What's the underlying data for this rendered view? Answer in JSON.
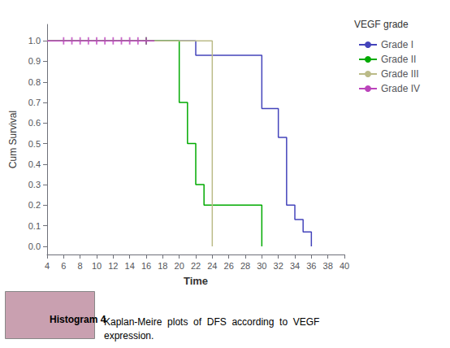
{
  "chart_data": {
    "type": "line",
    "xlabel": "Time",
    "ylabel": "Cum Survival",
    "legend_title": "VEGF grade",
    "xlim": [
      4,
      40
    ],
    "ylim": [
      -0.04,
      1.08
    ],
    "xticks": [
      4,
      6,
      8,
      10,
      12,
      14,
      16,
      18,
      20,
      22,
      24,
      26,
      28,
      30,
      32,
      34,
      36,
      38,
      40
    ],
    "yticks": [
      {
        "value": 0.0,
        "label": "0.0"
      },
      0.1,
      0.2,
      0.3,
      0.4,
      0.5,
      0.6,
      0.7,
      0.8,
      0.9,
      {
        "value": 1.0,
        "label": "1.0"
      }
    ],
    "grid": false,
    "legend": "right",
    "line_style": "steps-post",
    "series": [
      {
        "name": "Grade I",
        "color": "#4444bb",
        "x": [
          4,
          22,
          22,
          24,
          24,
          30,
          30,
          32,
          32,
          33,
          33,
          34,
          34,
          35,
          35,
          36,
          36
        ],
        "values": [
          1.0,
          1.0,
          0.93,
          0.93,
          0.93,
          0.93,
          0.67,
          0.67,
          0.53,
          0.53,
          0.2,
          0.2,
          0.13,
          0.13,
          0.07,
          0.07,
          0.0
        ]
      },
      {
        "name": "Grade II",
        "color": "#00aa00",
        "x": [
          4,
          20,
          20,
          21,
          21,
          22,
          22,
          23,
          23,
          30,
          30
        ],
        "values": [
          1.0,
          1.0,
          0.7,
          0.7,
          0.5,
          0.5,
          0.3,
          0.3,
          0.2,
          0.2,
          0.0
        ],
        "censors": {
          "x": [
            16
          ],
          "values": [
            1.0
          ],
          "marker": "plus"
        }
      },
      {
        "name": "Grade III",
        "color": "#bbbb88",
        "x": [
          4,
          24,
          24
        ],
        "values": [
          1.0,
          1.0,
          0.0
        ]
      },
      {
        "name": "Grade IV",
        "color": "#bb44bb",
        "x": [
          4,
          17
        ],
        "values": [
          1.0,
          1.0
        ],
        "censors": {
          "x": [
            6,
            7,
            8,
            9,
            10,
            11,
            12,
            13,
            14,
            15,
            16
          ],
          "values": [
            1.0,
            1.0,
            1.0,
            1.0,
            1.0,
            1.0,
            1.0,
            1.0,
            1.0,
            1.0,
            1.0
          ],
          "marker": "plus"
        }
      }
    ],
    "annotations": [
      {
        "text": "Histogram 4",
        "color": "#c9a0b0"
      },
      {
        "text": "Kaplan-Meire  plots  of  DFS  according  to  VEGF\nexpression."
      }
    ]
  }
}
